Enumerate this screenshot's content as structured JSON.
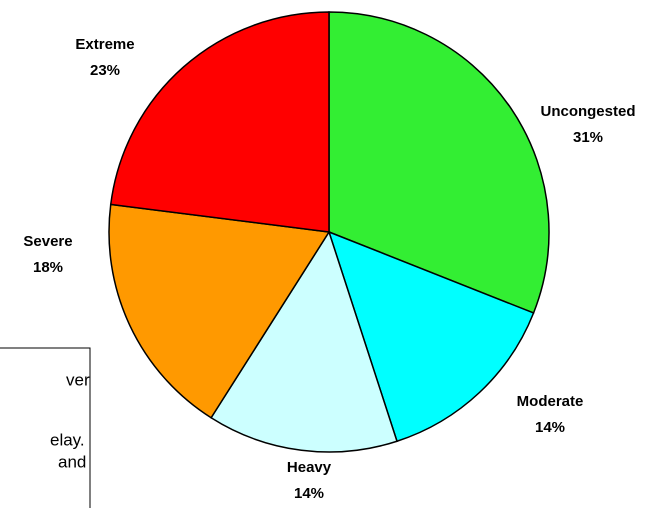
{
  "chart_data": {
    "type": "pie",
    "categories": [
      "Uncongested",
      "Moderate",
      "Heavy",
      "Severe",
      "Extreme"
    ],
    "values": [
      31,
      14,
      14,
      18,
      23
    ],
    "value_labels": [
      "31%",
      "14%",
      "14%",
      "18%",
      "23%"
    ],
    "colors": [
      "#33ee33",
      "#00ffff",
      "#ccffff",
      "#ff9900",
      "#ff0000"
    ],
    "annotation_lines": [
      "ver",
      "elay.",
      "and"
    ]
  }
}
